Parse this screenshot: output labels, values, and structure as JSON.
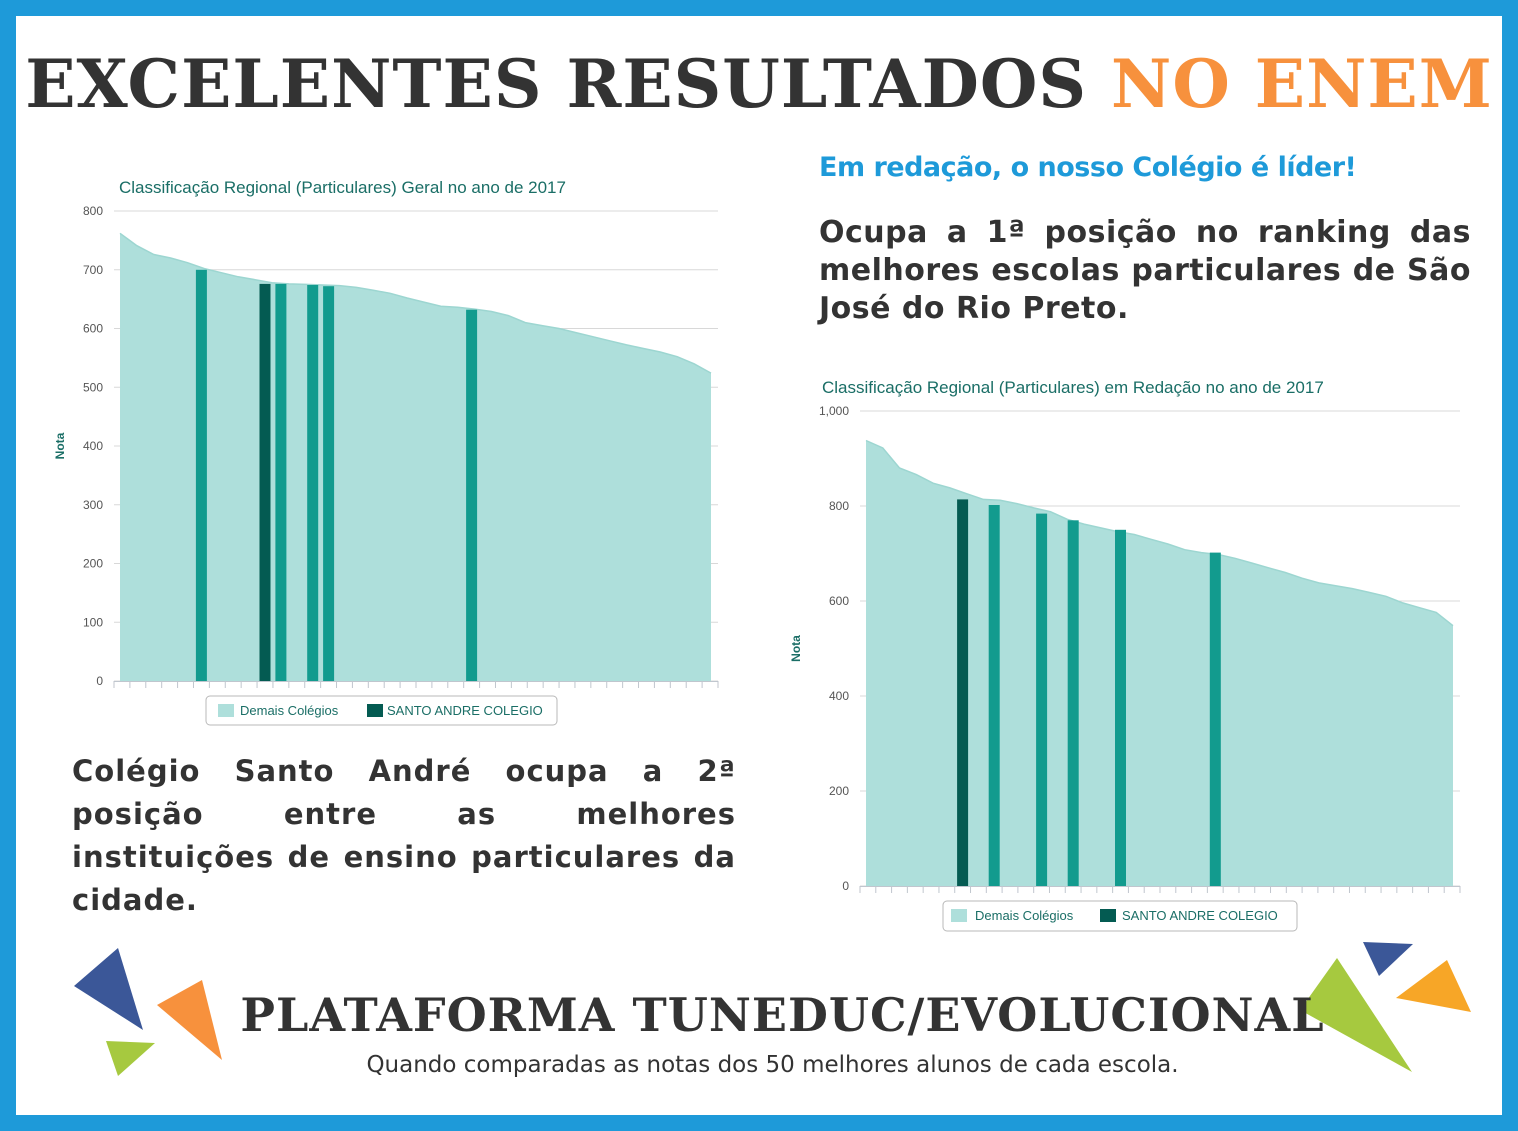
{
  "headline": {
    "main": "EXCELENTES RESULTADOS ",
    "accent": "NO ENEM"
  },
  "right_text": {
    "subheadline": "Em redação, o nosso Colégio é líder!",
    "paragraph": "Ocupa a 1ª posição no ranking das melhores escolas particulares de São José do Rio Preto."
  },
  "left_text": {
    "paragraph": "Colégio Santo André ocupa a 2ª posição entre as melhores instituições de ensino particulares da cidade."
  },
  "footer": {
    "title": "PLATAFORMA TUNEDUC/EVOLUCIONAL",
    "note": "Quando comparadas as notas dos 50 melhores alunos de cada escola."
  },
  "colors": {
    "frame": "#1e9ad9",
    "accent_orange": "#f7913d",
    "area_fill": "#aedfdb",
    "bar_other": "#129b8e",
    "bar_santo_andre": "#045b52",
    "text_dark": "#333333",
    "chart_title": "#1a6e66"
  },
  "chart_data": [
    {
      "type": "area",
      "title": "Classificação Regional (Particulares) Geral no ano de 2017",
      "ylabel": "Nota",
      "ylim": [
        0,
        800
      ],
      "yticks": [
        "0",
        "100",
        "200",
        "300",
        "400",
        "500",
        "600",
        "700",
        "800"
      ],
      "legend_position": "bottom-center",
      "grid": true,
      "x_count": 38,
      "series": [
        {
          "name": "Demais Colégios",
          "values": [
            762,
            741,
            726,
            720,
            712,
            702,
            695,
            688,
            683,
            678,
            676,
            675,
            674,
            673,
            670,
            665,
            660,
            652,
            645,
            638,
            636,
            633,
            629,
            622,
            610,
            605,
            600,
            593,
            586,
            579,
            572,
            566,
            560,
            552,
            540,
            524
          ]
        }
      ],
      "bars": [
        {
          "series": "Demais Colégios",
          "x": 5.5,
          "value": 700
        },
        {
          "series": "SANTO ANDRE COLEGIO",
          "x": 9.5,
          "value": 676
        },
        {
          "series": "Demais Colégios",
          "x": 10.5,
          "value": 676
        },
        {
          "series": "Demais Colégios",
          "x": 12.5,
          "value": 674
        },
        {
          "series": "Demais Colégios",
          "x": 13.5,
          "value": 672
        },
        {
          "series": "Demais Colégios",
          "x": 22.5,
          "value": 632
        }
      ],
      "legend": [
        "Demais Colégios",
        "SANTO ANDRE COLEGIO"
      ]
    },
    {
      "type": "area",
      "title": "Classificação Regional (Particulares) em Redação no ano de 2017",
      "ylabel": "Nota",
      "ylim": [
        0,
        1000
      ],
      "yticks": [
        "0",
        "200",
        "400",
        "600",
        "800",
        "1,000"
      ],
      "legend_position": "bottom-center",
      "grid": true,
      "x_count": 38,
      "series": [
        {
          "name": "Demais Colégios",
          "values": [
            938,
            922,
            880,
            866,
            848,
            838,
            826,
            814,
            812,
            805,
            796,
            788,
            772,
            762,
            754,
            746,
            740,
            730,
            720,
            708,
            702,
            698,
            690,
            680,
            670,
            660,
            648,
            638,
            632,
            626,
            618,
            610,
            596,
            586,
            576,
            548
          ]
        }
      ],
      "bars": [
        {
          "series": "SANTO ANDRE COLEGIO",
          "x": 6.5,
          "value": 814
        },
        {
          "series": "Demais Colégios",
          "x": 8.5,
          "value": 802
        },
        {
          "series": "Demais Colégios",
          "x": 11.5,
          "value": 784
        },
        {
          "series": "Demais Colégios",
          "x": 13.5,
          "value": 770
        },
        {
          "series": "Demais Colégios",
          "x": 16.5,
          "value": 750
        },
        {
          "series": "Demais Colégios",
          "x": 22.5,
          "value": 702
        }
      ],
      "legend": [
        "Demais Colégios",
        "SANTO ANDRE COLEGIO"
      ]
    }
  ]
}
